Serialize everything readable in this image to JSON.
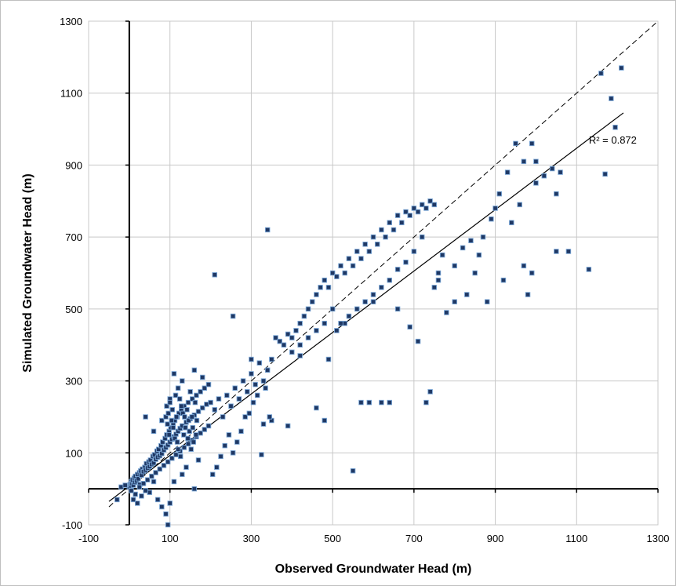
{
  "chart_data": {
    "type": "scatter",
    "xlabel": "Observed Groundwater Head (m)",
    "ylabel": "Simulated Groundwater Head (m)",
    "xlim": [
      -100,
      1300
    ],
    "ylim": [
      -100,
      1300
    ],
    "x_ticks": [
      "-100",
      "100",
      "300",
      "500",
      "700",
      "900",
      "1100",
      "1300"
    ],
    "y_ticks": [
      "-100",
      "100",
      "300",
      "500",
      "700",
      "900",
      "1100",
      "1300"
    ],
    "tick_values": [
      -100,
      100,
      300,
      500,
      700,
      900,
      1100,
      1300
    ],
    "grid": true,
    "marker_color": "#1f3864",
    "marker_edge_color": "#7aa6d6",
    "one_to_one_line": {
      "style": "dashed",
      "x": [
        -50,
        1300
      ],
      "y": [
        -50,
        1300
      ]
    },
    "trend_line": {
      "style": "solid",
      "x": [
        -50,
        1215
      ],
      "y": [
        -35,
        1045
      ]
    },
    "annotation": "R² = 0.872",
    "annotation_pos": [
      1130,
      960
    ],
    "points": [
      [
        0,
        5
      ],
      [
        2,
        12
      ],
      [
        4,
        8
      ],
      [
        5,
        20
      ],
      [
        6,
        15
      ],
      [
        8,
        25
      ],
      [
        10,
        10
      ],
      [
        12,
        30
      ],
      [
        14,
        18
      ],
      [
        15,
        35
      ],
      [
        18,
        22
      ],
      [
        20,
        40
      ],
      [
        22,
        28
      ],
      [
        25,
        45
      ],
      [
        26,
        12
      ],
      [
        28,
        50
      ],
      [
        30,
        38
      ],
      [
        32,
        55
      ],
      [
        35,
        48
      ],
      [
        38,
        60
      ],
      [
        40,
        52
      ],
      [
        42,
        70
      ],
      [
        45,
        58
      ],
      [
        48,
        75
      ],
      [
        50,
        62
      ],
      [
        52,
        80
      ],
      [
        55,
        68
      ],
      [
        58,
        90
      ],
      [
        60,
        72
      ],
      [
        62,
        95
      ],
      [
        65,
        82
      ],
      [
        68,
        105
      ],
      [
        70,
        88
      ],
      [
        72,
        110
      ],
      [
        75,
        92
      ],
      [
        78,
        120
      ],
      [
        80,
        98
      ],
      [
        82,
        130
      ],
      [
        85,
        108
      ],
      [
        88,
        140
      ],
      [
        90,
        115
      ],
      [
        92,
        150
      ],
      [
        95,
        122
      ],
      [
        98,
        160
      ],
      [
        100,
        130
      ],
      [
        102,
        170
      ],
      [
        105,
        138
      ],
      [
        108,
        180
      ],
      [
        110,
        145
      ],
      [
        112,
        190
      ],
      [
        115,
        152
      ],
      [
        118,
        200
      ],
      [
        120,
        160
      ],
      [
        122,
        210
      ],
      [
        125,
        168
      ],
      [
        128,
        220
      ],
      [
        130,
        175
      ],
      [
        135,
        230
      ],
      [
        140,
        185
      ],
      [
        145,
        240
      ],
      [
        150,
        195
      ],
      [
        155,
        250
      ],
      [
        160,
        205
      ],
      [
        165,
        260
      ],
      [
        170,
        215
      ],
      [
        175,
        270
      ],
      [
        180,
        225
      ],
      [
        185,
        280
      ],
      [
        190,
        235
      ],
      [
        195,
        290
      ],
      [
        200,
        240
      ],
      [
        210,
        220
      ],
      [
        220,
        250
      ],
      [
        230,
        200
      ],
      [
        240,
        260
      ],
      [
        250,
        230
      ],
      [
        260,
        280
      ],
      [
        270,
        250
      ],
      [
        280,
        300
      ],
      [
        290,
        270
      ],
      [
        300,
        320
      ],
      [
        310,
        290
      ],
      [
        320,
        350
      ],
      [
        330,
        300
      ],
      [
        340,
        330
      ],
      [
        350,
        360
      ],
      [
        360,
        420
      ],
      [
        370,
        410
      ],
      [
        380,
        400
      ],
      [
        390,
        430
      ],
      [
        400,
        420
      ],
      [
        410,
        440
      ],
      [
        420,
        460
      ],
      [
        430,
        480
      ],
      [
        440,
        500
      ],
      [
        450,
        520
      ],
      [
        460,
        540
      ],
      [
        470,
        560
      ],
      [
        480,
        580
      ],
      [
        490,
        560
      ],
      [
        500,
        600
      ],
      [
        510,
        590
      ],
      [
        520,
        620
      ],
      [
        530,
        600
      ],
      [
        540,
        640
      ],
      [
        550,
        620
      ],
      [
        560,
        660
      ],
      [
        570,
        640
      ],
      [
        580,
        680
      ],
      [
        590,
        660
      ],
      [
        600,
        700
      ],
      [
        610,
        680
      ],
      [
        620,
        720
      ],
      [
        630,
        700
      ],
      [
        640,
        740
      ],
      [
        650,
        720
      ],
      [
        660,
        760
      ],
      [
        670,
        740
      ],
      [
        680,
        770
      ],
      [
        690,
        760
      ],
      [
        700,
        780
      ],
      [
        710,
        770
      ],
      [
        720,
        790
      ],
      [
        730,
        780
      ],
      [
        740,
        800
      ],
      [
        750,
        790
      ],
      [
        40,
        200
      ],
      [
        60,
        160
      ],
      [
        80,
        190
      ],
      [
        100,
        250
      ],
      [
        110,
        320
      ],
      [
        120,
        280
      ],
      [
        130,
        300
      ],
      [
        150,
        270
      ],
      [
        160,
        330
      ],
      [
        180,
        310
      ],
      [
        210,
        595
      ],
      [
        255,
        480
      ],
      [
        340,
        720
      ],
      [
        300,
        360
      ],
      [
        350,
        190
      ],
      [
        330,
        180
      ],
      [
        390,
        175
      ],
      [
        420,
        370
      ],
      [
        460,
        225
      ],
      [
        480,
        190
      ],
      [
        490,
        360
      ],
      [
        510,
        440
      ],
      [
        530,
        460
      ],
      [
        550,
        50
      ],
      [
        570,
        240
      ],
      [
        590,
        240
      ],
      [
        600,
        520
      ],
      [
        620,
        240
      ],
      [
        640,
        240
      ],
      [
        660,
        500
      ],
      [
        690,
        450
      ],
      [
        710,
        410
      ],
      [
        730,
        240
      ],
      [
        740,
        270
      ],
      [
        760,
        580
      ],
      [
        780,
        490
      ],
      [
        800,
        520
      ],
      [
        830,
        540
      ],
      [
        860,
        650
      ],
      [
        880,
        520
      ],
      [
        900,
        780
      ],
      [
        920,
        580
      ],
      [
        940,
        740
      ],
      [
        960,
        790
      ],
      [
        980,
        540
      ],
      [
        990,
        600
      ],
      [
        1000,
        850
      ],
      [
        1020,
        870
      ],
      [
        1050,
        820
      ],
      [
        1060,
        880
      ],
      [
        1080,
        660
      ],
      [
        1130,
        610
      ],
      [
        1160,
        1155
      ],
      [
        1170,
        875
      ],
      [
        1185,
        1085
      ],
      [
        1195,
        1005
      ],
      [
        1210,
        1170
      ],
      [
        850,
        600
      ],
      [
        870,
        700
      ],
      [
        890,
        750
      ],
      [
        910,
        820
      ],
      [
        930,
        880
      ],
      [
        950,
        960
      ],
      [
        970,
        910
      ],
      [
        990,
        960
      ],
      [
        1000,
        910
      ],
      [
        1040,
        890
      ],
      [
        1050,
        660
      ],
      [
        970,
        620
      ],
      [
        800,
        620
      ],
      [
        820,
        670
      ],
      [
        840,
        690
      ],
      [
        760,
        600
      ],
      [
        750,
        560
      ],
      [
        770,
        650
      ],
      [
        720,
        700
      ],
      [
        700,
        660
      ],
      [
        680,
        630
      ],
      [
        660,
        610
      ],
      [
        640,
        580
      ],
      [
        620,
        560
      ],
      [
        600,
        540
      ],
      [
        580,
        520
      ],
      [
        560,
        500
      ],
      [
        540,
        480
      ],
      [
        520,
        460
      ],
      [
        500,
        500
      ],
      [
        480,
        460
      ],
      [
        460,
        440
      ],
      [
        440,
        420
      ],
      [
        420,
        400
      ],
      [
        400,
        380
      ],
      [
        10,
        -30
      ],
      [
        20,
        -40
      ],
      [
        30,
        -20
      ],
      [
        50,
        -10
      ],
      [
        70,
        -30
      ],
      [
        80,
        -50
      ],
      [
        90,
        -70
      ],
      [
        95,
        -100
      ],
      [
        100,
        -40
      ],
      [
        110,
        20
      ],
      [
        130,
        40
      ],
      [
        140,
        60
      ],
      [
        160,
        0
      ],
      [
        170,
        80
      ],
      [
        60,
        20
      ],
      [
        40,
        -5
      ],
      [
        15,
        -15
      ],
      [
        -20,
        5
      ],
      [
        -30,
        -30
      ],
      [
        -10,
        10
      ],
      [
        5,
        -5
      ],
      [
        25,
        5
      ],
      [
        35,
        15
      ],
      [
        45,
        25
      ],
      [
        55,
        35
      ],
      [
        65,
        45
      ],
      [
        75,
        55
      ],
      [
        85,
        65
      ],
      [
        95,
        75
      ],
      [
        105,
        85
      ],
      [
        115,
        95
      ],
      [
        125,
        105
      ],
      [
        135,
        115
      ],
      [
        145,
        125
      ],
      [
        155,
        135
      ],
      [
        165,
        145
      ],
      [
        175,
        155
      ],
      [
        185,
        165
      ],
      [
        195,
        175
      ],
      [
        205,
        40
      ],
      [
        215,
        60
      ],
      [
        225,
        90
      ],
      [
        235,
        120
      ],
      [
        245,
        150
      ],
      [
        255,
        100
      ],
      [
        265,
        130
      ],
      [
        275,
        160
      ],
      [
        285,
        200
      ],
      [
        295,
        210
      ],
      [
        305,
        240
      ],
      [
        315,
        260
      ],
      [
        325,
        95
      ],
      [
        335,
        280
      ],
      [
        345,
        200
      ],
      [
        90,
        200
      ],
      [
        92,
        230
      ],
      [
        94,
        180
      ],
      [
        96,
        210
      ],
      [
        98,
        150
      ],
      [
        100,
        240
      ],
      [
        104,
        190
      ],
      [
        106,
        220
      ],
      [
        108,
        170
      ],
      [
        112,
        140
      ],
      [
        114,
        260
      ],
      [
        116,
        200
      ],
      [
        118,
        130
      ],
      [
        120,
        110
      ],
      [
        124,
        250
      ],
      [
        126,
        90
      ],
      [
        128,
        230
      ],
      [
        132,
        210
      ],
      [
        134,
        150
      ],
      [
        136,
        200
      ],
      [
        138,
        170
      ],
      [
        142,
        220
      ],
      [
        144,
        140
      ],
      [
        146,
        190
      ],
      [
        148,
        160
      ],
      [
        152,
        110
      ],
      [
        154,
        200
      ],
      [
        156,
        170
      ],
      [
        158,
        130
      ],
      [
        162,
        240
      ],
      [
        164,
        150
      ],
      [
        166,
        190
      ]
    ]
  }
}
